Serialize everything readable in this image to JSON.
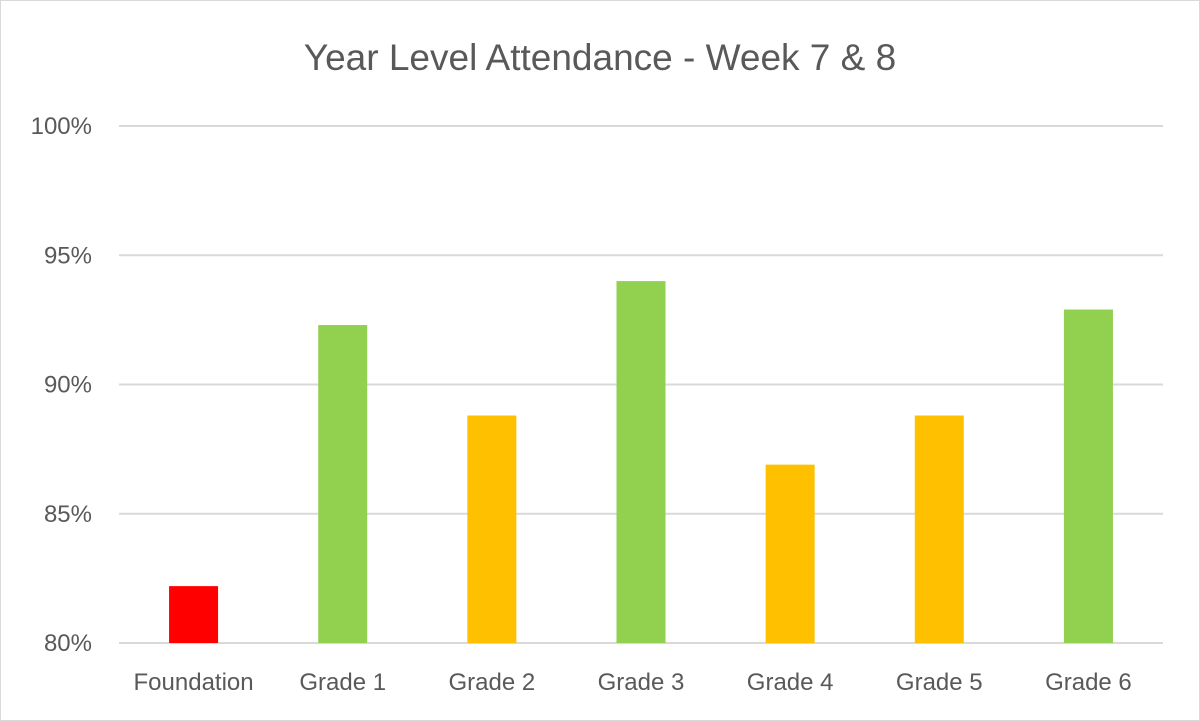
{
  "chart_data": {
    "type": "bar",
    "title": "Year Level Attendance - Week 7 & 8",
    "xlabel": "",
    "ylabel": "",
    "categories": [
      "Foundation",
      "Grade 1",
      "Grade 2",
      "Grade 3",
      "Grade 4",
      "Grade 5",
      "Grade 6"
    ],
    "values": [
      82.2,
      92.3,
      88.8,
      94.0,
      86.9,
      88.8,
      92.9
    ],
    "bar_colors": [
      "#ff0000",
      "#92d050",
      "#ffc000",
      "#92d050",
      "#ffc000",
      "#ffc000",
      "#92d050"
    ],
    "ylim": [
      80,
      100
    ],
    "yticks": [
      80,
      85,
      90,
      95,
      100
    ],
    "ytick_labels": [
      "80%",
      "85%",
      "90%",
      "95%",
      "100%"
    ],
    "grid": true,
    "legend": "none"
  },
  "colors": {
    "gridline": "#d9d9d9",
    "text": "#595959",
    "border": "#d9d9d9"
  }
}
